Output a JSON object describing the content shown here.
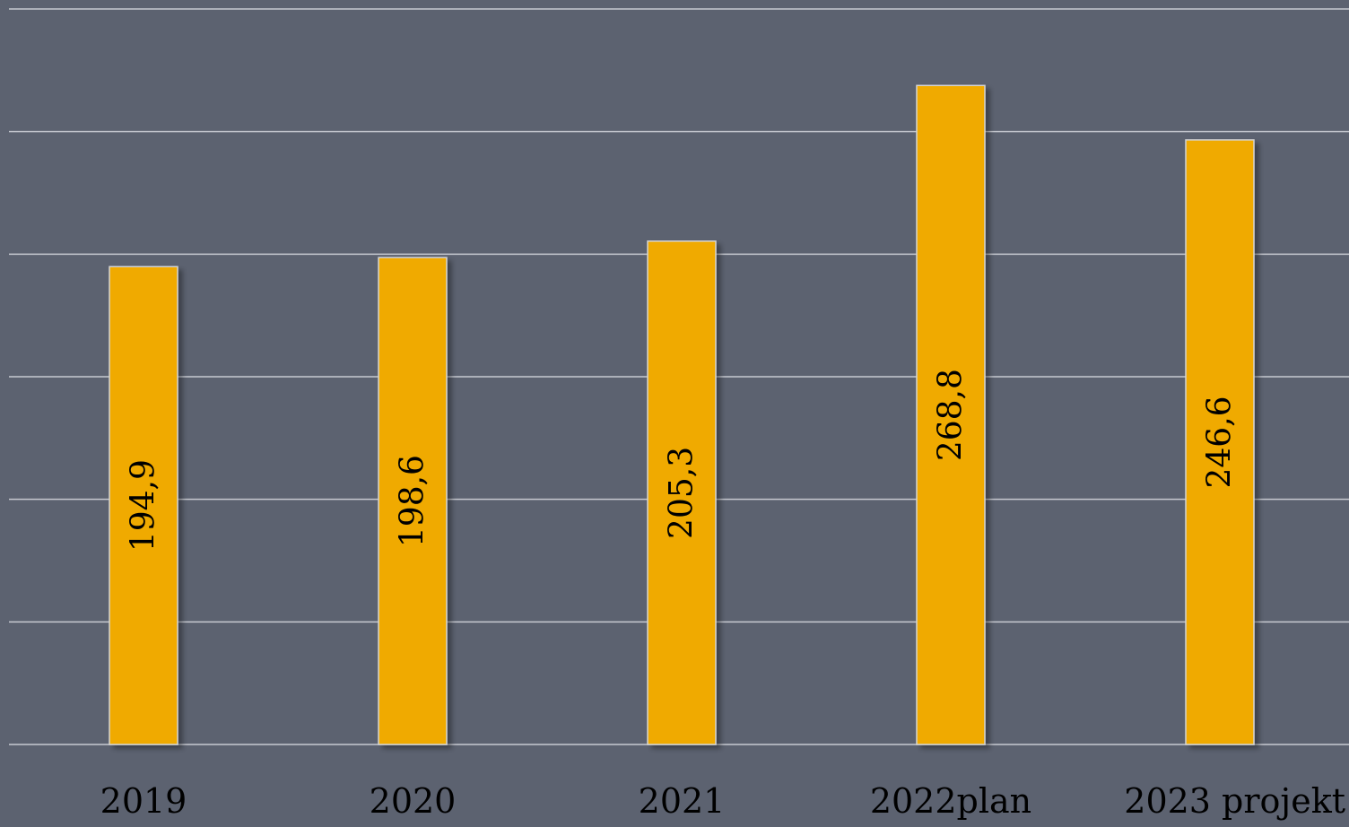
{
  "chart_data": {
    "type": "bar",
    "categories": [
      "2019",
      "2020",
      "2021",
      "2022plan",
      "2023 projekt"
    ],
    "values": [
      194.9,
      198.6,
      205.3,
      268.8,
      246.6
    ],
    "value_labels": [
      "194,9",
      "198,6",
      "205,3",
      "268,8",
      "246,6"
    ],
    "ylim": [
      0,
      300
    ],
    "grid": true,
    "colors": {
      "background": "#5c6270",
      "bar": "#f0aa00",
      "bar_edge": "#d4d4d4",
      "gridline": "#c7cad1",
      "text": "#000000"
    }
  }
}
